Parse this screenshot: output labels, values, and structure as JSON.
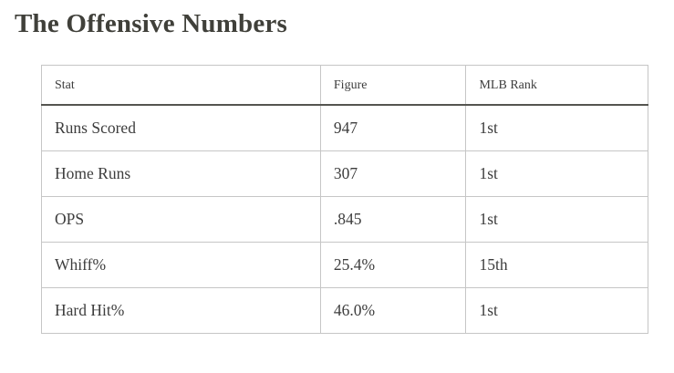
{
  "page": {
    "title": "The Offensive Numbers"
  },
  "table": {
    "columns": [
      "Stat",
      "Figure",
      "MLB Rank"
    ],
    "rows": [
      [
        "Runs Scored",
        "947",
        "1st"
      ],
      [
        "Home Runs",
        "307",
        "1st"
      ],
      [
        "OPS",
        ".845",
        "1st"
      ],
      [
        "Whiff%",
        "25.4%",
        "15th"
      ],
      [
        "Hard Hit%",
        "46.0%",
        "1st"
      ]
    ]
  },
  "colors": {
    "text": "#3d3d3d",
    "heading": "#40403a",
    "border": "#c6c6c6",
    "header_rule": "#555550",
    "background": "#ffffff"
  }
}
